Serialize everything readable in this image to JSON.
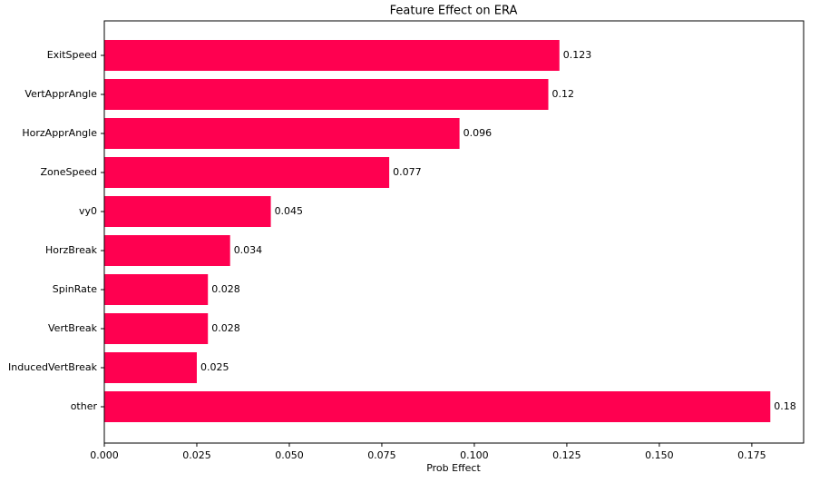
{
  "chart_data": {
    "type": "barh",
    "title": "Feature Effect on ERA",
    "xlabel": "Prob Effect",
    "categories": [
      "ExitSpeed",
      "VertApprAngle",
      "HorzApprAngle",
      "ZoneSpeed",
      "vy0",
      "HorzBreak",
      "SpinRate",
      "VertBreak",
      "InducedVertBreak",
      "other"
    ],
    "values": [
      0.123,
      0.12,
      0.096,
      0.077,
      0.045,
      0.034,
      0.028,
      0.028,
      0.025,
      0.18
    ],
    "color": "#ff0050",
    "xlim": [
      0,
      0.189
    ],
    "xticks": [
      {
        "value": 0,
        "label": "0.000"
      },
      {
        "value": 0.025,
        "label": "0.025"
      },
      {
        "value": 0.05,
        "label": "0.050"
      },
      {
        "value": 0.075,
        "label": "0.075"
      },
      {
        "value": 0.1,
        "label": "0.100"
      },
      {
        "value": 0.125,
        "label": "0.125"
      },
      {
        "value": 0.15,
        "label": "0.150"
      },
      {
        "value": 0.175,
        "label": "0.175"
      }
    ],
    "grid": false
  }
}
